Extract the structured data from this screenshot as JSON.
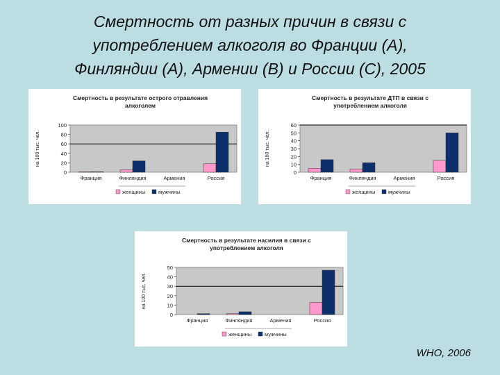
{
  "slide": {
    "title_lines": [
      "Смертность от разных причин в связи с",
      "употреблением алкоголя во Франции (A),",
      "Финляндии (A), Армении (B) и России (C), 2005"
    ],
    "source": "WHO, 2006"
  },
  "chart_data": [
    {
      "type": "bar",
      "title_lines": [
        "Смертность в результате острого отравления",
        "алкоголем"
      ],
      "ylabel": "на 100 тыс. чел.",
      "categories": [
        "Франция",
        "Финляндия",
        "Армения",
        "Россия"
      ],
      "ylim": [
        0,
        100
      ],
      "yticks": [
        0,
        20,
        40,
        60,
        80,
        100
      ],
      "grid": false,
      "reference_line": 60,
      "legend_position": "bottom",
      "series": [
        {
          "name": "женщины",
          "color": "#ff99cc",
          "values": [
            1,
            5,
            0,
            18
          ]
        },
        {
          "name": "мужчины",
          "color": "#0d2f6b",
          "values": [
            1,
            24,
            0,
            85
          ]
        }
      ]
    },
    {
      "type": "bar",
      "title_lines": [
        "Смертность в результате ДТП в связи с",
        "употреблением алкоголя"
      ],
      "ylabel": "на 100 тыс. чел.",
      "categories": [
        "Франция",
        "Финляндия",
        "Армения",
        "Россия"
      ],
      "ylim": [
        0,
        60
      ],
      "yticks": [
        0,
        10,
        20,
        30,
        40,
        50,
        60
      ],
      "grid": false,
      "reference_line": 60,
      "legend_position": "bottom",
      "series": [
        {
          "name": "женщины",
          "color": "#ff99cc",
          "values": [
            5,
            4,
            0,
            15
          ]
        },
        {
          "name": "мужчины",
          "color": "#0d2f6b",
          "values": [
            16,
            12,
            0,
            50
          ]
        }
      ]
    },
    {
      "type": "bar",
      "title_lines": [
        "Смертность в результате насилия в связи с",
        "употреблением алкоголя"
      ],
      "ylabel": "на 100 тыс. чел.",
      "categories": [
        "Франция",
        "Финляндия",
        "Армения",
        "Россия"
      ],
      "ylim": [
        0,
        50
      ],
      "yticks": [
        0,
        10,
        20,
        30,
        40,
        50
      ],
      "grid": false,
      "reference_line": 30,
      "legend_position": "bottom",
      "series": [
        {
          "name": "женщины",
          "color": "#ff99cc",
          "values": [
            0,
            1,
            0,
            13
          ]
        },
        {
          "name": "мужчины",
          "color": "#0d2f6b",
          "values": [
            1,
            3,
            0,
            47
          ]
        }
      ]
    }
  ]
}
